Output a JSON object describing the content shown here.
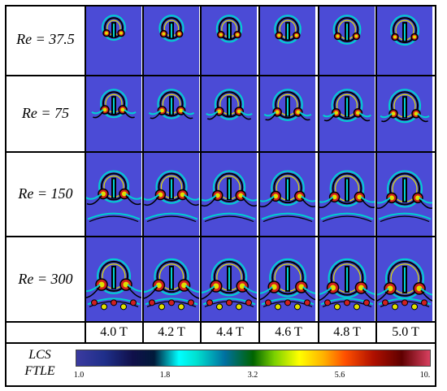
{
  "rows": [
    {
      "label": "Re = 37.5"
    },
    {
      "label": "Re = 75"
    },
    {
      "label": "Re = 150"
    },
    {
      "label": "Re = 300"
    }
  ],
  "time_labels": [
    "4.0 T",
    "4.2 T",
    "4.4 T",
    "4.6 T",
    "4.8 T",
    "5.0 T"
  ],
  "colorbar": {
    "title_line1": "LCS",
    "title_line2": "FTLE",
    "ticks": [
      "1.0",
      "1.8",
      "3.2",
      "5.6",
      "10."
    ]
  },
  "colors": {
    "background_field": "#4b4bd6",
    "vortex_core": "#000000",
    "high_ftle": "#d02020",
    "mid_ftle": "#e0e000",
    "low_ftle": "#00d0d0"
  }
}
